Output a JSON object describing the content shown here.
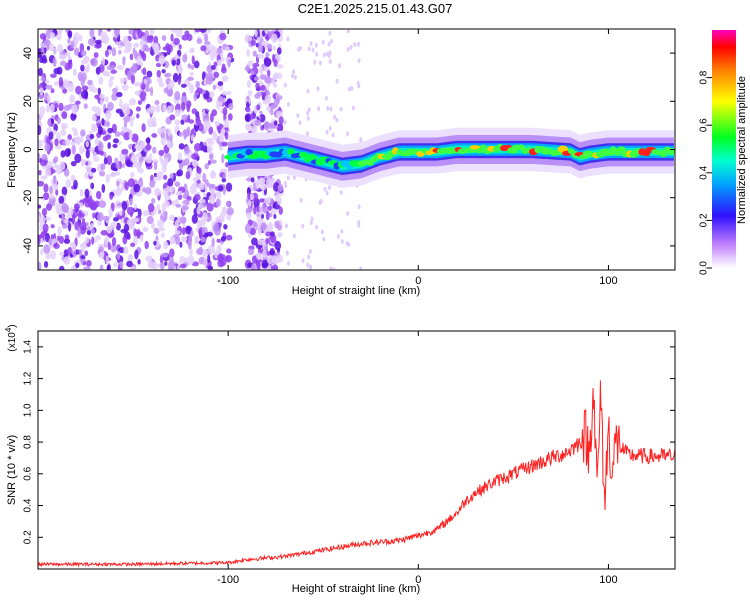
{
  "title": "C2E1.2025.215.01.43.G07",
  "chart_data": [
    {
      "type": "heatmap",
      "xlabel": "Height of straight line (km)",
      "ylabel": "Frequency (Hz)",
      "xlim": [
        -200,
        135
      ],
      "ylim": [
        -50,
        50
      ],
      "xticks": [
        -100,
        0,
        100
      ],
      "yticks": [
        -40,
        -20,
        0,
        20,
        40
      ],
      "colorbar": {
        "label": "Normalized spectral amplitude",
        "range": [
          0,
          1
        ],
        "ticks": [
          "0.0",
          "0.2",
          "0.4",
          "0.6",
          "0.8"
        ]
      },
      "ridge": {
        "x": [
          -100,
          -90,
          -80,
          -70,
          -60,
          -50,
          -40,
          -30,
          -20,
          -10,
          0,
          10,
          20,
          40,
          60,
          80,
          85,
          90,
          100,
          110,
          120,
          130,
          135
        ],
        "y": [
          -3,
          -2,
          -2,
          -1,
          -3,
          -5,
          -7,
          -6,
          -3,
          -1,
          -1,
          -1,
          0,
          0,
          0,
          -1,
          -3,
          -2,
          -1,
          -1,
          -1,
          -1,
          -1
        ]
      }
    },
    {
      "type": "line",
      "xlabel": "Height of straight line (km)",
      "ylabel": "SNR (10 * v/v)",
      "yscale_label": "(x10",
      "yscale_exp": "4",
      "yscale_close": ")",
      "xlim": [
        -200,
        135
      ],
      "ylim": [
        0,
        1.5
      ],
      "xticks": [
        -100,
        0,
        100
      ],
      "yticks": [
        0.2,
        0.4,
        0.6,
        0.8,
        1.0,
        1.2,
        1.4
      ],
      "color": "#ff2020",
      "series": [
        {
          "x": [
            -200,
            -150,
            -100,
            -90,
            -80,
            -70,
            -60,
            -50,
            -40,
            -30,
            -20,
            -10,
            0,
            10,
            20,
            25,
            30,
            40,
            50,
            60,
            70,
            75,
            80,
            85,
            88,
            90,
            92,
            94,
            96,
            98,
            100,
            102,
            104,
            110,
            120,
            135
          ],
          "y": [
            0.03,
            0.03,
            0.04,
            0.06,
            0.07,
            0.08,
            0.1,
            0.12,
            0.14,
            0.16,
            0.17,
            0.18,
            0.21,
            0.25,
            0.35,
            0.43,
            0.48,
            0.55,
            0.6,
            0.65,
            0.7,
            0.72,
            0.75,
            0.8,
            0.85,
            0.7,
            1.2,
            0.5,
            1.1,
            0.4,
            0.9,
            0.6,
            0.8,
            0.72,
            0.71,
            0.71
          ]
        }
      ]
    }
  ]
}
